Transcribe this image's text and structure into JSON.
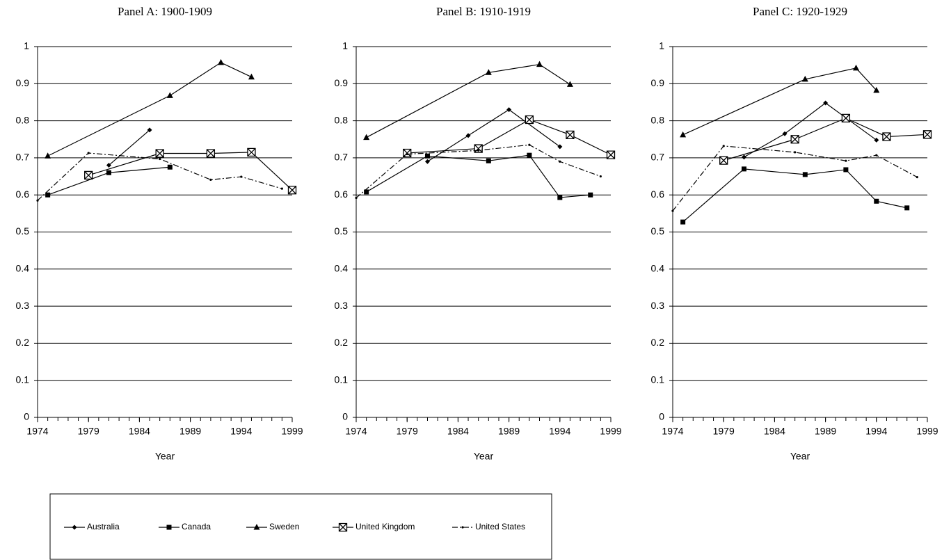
{
  "chart_data": [
    {
      "type": "line",
      "title": "Panel A: 1900-1909",
      "x_label": "Year",
      "xlim": [
        1974,
        1999
      ],
      "xticks": [
        1974,
        1979,
        1984,
        1989,
        1994,
        1999
      ],
      "ylim": [
        0,
        1
      ],
      "yticks": [
        0,
        0.1,
        0.2,
        0.3,
        0.4,
        0.5,
        0.6,
        0.7,
        0.8,
        0.9,
        1
      ],
      "grid": true,
      "series": [
        {
          "name": "Australia",
          "color": "#000000",
          "marker": "diamond",
          "x": [
            1981,
            1985
          ],
          "values": [
            0.68,
            0.775
          ]
        },
        {
          "name": "Canada",
          "color": "#000000",
          "marker": "square",
          "x": [
            1975,
            1981,
            1987
          ],
          "values": [
            0.6,
            0.66,
            0.675
          ]
        },
        {
          "name": "Sweden",
          "color": "#000000",
          "marker": "triangle",
          "x": [
            1975,
            1987,
            1992,
            1995
          ],
          "values": [
            0.705,
            0.868,
            0.957,
            0.918
          ]
        },
        {
          "name": "United Kingdom",
          "color": "#000000",
          "marker": "boxx",
          "x": [
            1979,
            1986,
            1991,
            1995,
            1999
          ],
          "values": [
            0.653,
            0.712,
            0.712,
            0.715,
            0.613
          ]
        },
        {
          "name": "United States",
          "color": "#000000",
          "marker": "dot",
          "dash": "dashdot",
          "x": [
            1974,
            1979,
            1986,
            1991,
            1994,
            1998
          ],
          "values": [
            0.585,
            0.713,
            0.697,
            0.641,
            0.649,
            0.617
          ]
        }
      ]
    },
    {
      "type": "line",
      "title": "Panel B: 1910-1919",
      "x_label": "Year",
      "xlim": [
        1974,
        1999
      ],
      "xticks": [
        1974,
        1979,
        1984,
        1989,
        1994,
        1999
      ],
      "ylim": [
        0,
        1
      ],
      "yticks": [
        0,
        0.1,
        0.2,
        0.3,
        0.4,
        0.5,
        0.6,
        0.7,
        0.8,
        0.9,
        1
      ],
      "grid": true,
      "series": [
        {
          "name": "Australia",
          "color": "#000000",
          "marker": "diamond",
          "x": [
            1981,
            1985,
            1989,
            1994
          ],
          "values": [
            0.69,
            0.76,
            0.83,
            0.73
          ]
        },
        {
          "name": "Canada",
          "color": "#000000",
          "marker": "square",
          "x": [
            1975,
            1981,
            1987,
            1991,
            1994,
            1997
          ],
          "values": [
            0.608,
            0.705,
            0.692,
            0.707,
            0.593,
            0.6
          ]
        },
        {
          "name": "Sweden",
          "color": "#000000",
          "marker": "triangle",
          "x": [
            1975,
            1987,
            1992,
            1995
          ],
          "values": [
            0.755,
            0.93,
            0.952,
            0.898
          ]
        },
        {
          "name": "United Kingdom",
          "color": "#000000",
          "marker": "boxx",
          "x": [
            1979,
            1986,
            1991,
            1995,
            1999
          ],
          "values": [
            0.713,
            0.725,
            0.803,
            0.762,
            0.708
          ]
        },
        {
          "name": "United States",
          "color": "#000000",
          "marker": "dot",
          "dash": "dashdot",
          "x": [
            1974,
            1979,
            1986,
            1991,
            1994,
            1998
          ],
          "values": [
            0.592,
            0.71,
            0.72,
            0.735,
            0.69,
            0.65
          ]
        }
      ]
    },
    {
      "type": "line",
      "title": "Panel C: 1920-1929",
      "x_label": "Year",
      "xlim": [
        1974,
        1999
      ],
      "xticks": [
        1974,
        1979,
        1984,
        1989,
        1994,
        1999
      ],
      "ylim": [
        0,
        1
      ],
      "yticks": [
        0,
        0.1,
        0.2,
        0.3,
        0.4,
        0.5,
        0.6,
        0.7,
        0.8,
        0.9,
        1
      ],
      "grid": true,
      "series": [
        {
          "name": "Australia",
          "color": "#000000",
          "marker": "diamond",
          "x": [
            1981,
            1985,
            1989,
            1994
          ],
          "values": [
            0.702,
            0.765,
            0.848,
            0.748
          ]
        },
        {
          "name": "Canada",
          "color": "#000000",
          "marker": "square",
          "x": [
            1975,
            1981,
            1987,
            1991,
            1994,
            1997
          ],
          "values": [
            0.527,
            0.67,
            0.655,
            0.668,
            0.583,
            0.565
          ]
        },
        {
          "name": "Sweden",
          "color": "#000000",
          "marker": "triangle",
          "x": [
            1975,
            1987,
            1992,
            1994
          ],
          "values": [
            0.762,
            0.912,
            0.942,
            0.882
          ]
        },
        {
          "name": "United Kingdom",
          "color": "#000000",
          "marker": "boxx",
          "x": [
            1979,
            1986,
            1991,
            1995,
            1999
          ],
          "values": [
            0.693,
            0.75,
            0.807,
            0.757,
            0.763
          ]
        },
        {
          "name": "United States",
          "color": "#000000",
          "marker": "dot",
          "dash": "dashdot",
          "x": [
            1974,
            1979,
            1986,
            1991,
            1994,
            1998
          ],
          "values": [
            0.557,
            0.732,
            0.715,
            0.692,
            0.707,
            0.648
          ]
        }
      ]
    }
  ]
}
